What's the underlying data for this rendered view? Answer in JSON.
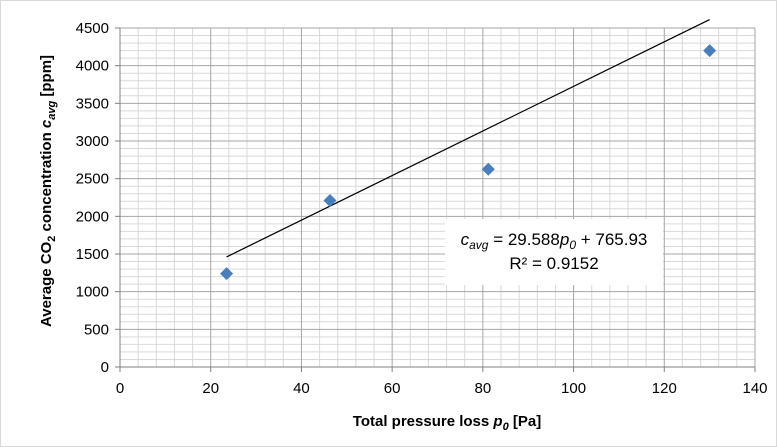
{
  "chart_data": {
    "type": "scatter",
    "xlabel": "Total pressure loss p0 [Pa]",
    "xlabel_parts": {
      "pre": "Total pressure loss ",
      "var": "p",
      "sub": "0",
      "post": " [Pa]"
    },
    "ylabel": "Average CO2 concentration cavg [ppm]",
    "ylabel_parts": {
      "pre": "Average CO",
      "sub1": "2",
      "mid": " concentration ",
      "var": "c",
      "sub2": "avg",
      "post": " [ppm]"
    },
    "xlim": [
      0,
      140
    ],
    "ylim": [
      0,
      4500
    ],
    "xticks": [
      0,
      20,
      40,
      60,
      80,
      100,
      120,
      140
    ],
    "yticks": [
      0,
      500,
      1000,
      1500,
      2000,
      2500,
      3000,
      3500,
      4000,
      4500
    ],
    "grid": true,
    "x_minor_step": 4,
    "y_minor_step": 100,
    "series": [
      {
        "marker": "diamond",
        "color": "#4a7ebb",
        "points": [
          {
            "x": 23.5,
            "y": 1240
          },
          {
            "x": 46.3,
            "y": 2210
          },
          {
            "x": 81.2,
            "y": 2625
          },
          {
            "x": 130,
            "y": 4200
          }
        ]
      }
    ],
    "trendline": {
      "slope": 29.588,
      "intercept": 765.93,
      "x_range": [
        23.5,
        130
      ],
      "color": "#000000",
      "equation_parts": {
        "var": "c",
        "sub": "avg",
        "eq": " = 29.588",
        "var2": "p",
        "sub2": "0",
        "tail": " + 765.93"
      },
      "r2_text": "R² = 0.9152"
    },
    "colors": {
      "major_grid": "#a6a6a6",
      "minor_grid": "#d9d9d9",
      "axis": "#808080"
    }
  }
}
